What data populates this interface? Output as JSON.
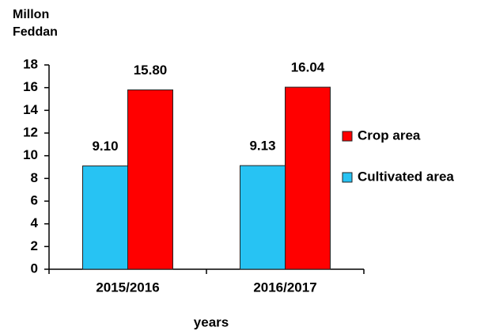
{
  "chart_data": {
    "type": "bar",
    "ylabel": "Millon Feddan",
    "xlabel": "years",
    "categories": [
      "2015/2016",
      "2016/2017"
    ],
    "series": [
      {
        "name": "Cultivated area",
        "color": "#27c3f3",
        "values": [
          9.1,
          9.13
        ],
        "value_labels": [
          "9.10",
          "9.13"
        ]
      },
      {
        "name": "Crop area",
        "color": "#ff0000",
        "values": [
          15.8,
          16.04
        ],
        "value_labels": [
          "15.80",
          "16.04"
        ]
      }
    ],
    "ylim": [
      0,
      18
    ],
    "yticks": [
      0,
      2,
      4,
      6,
      8,
      10,
      12,
      14,
      16,
      18
    ],
    "legend": "right"
  }
}
